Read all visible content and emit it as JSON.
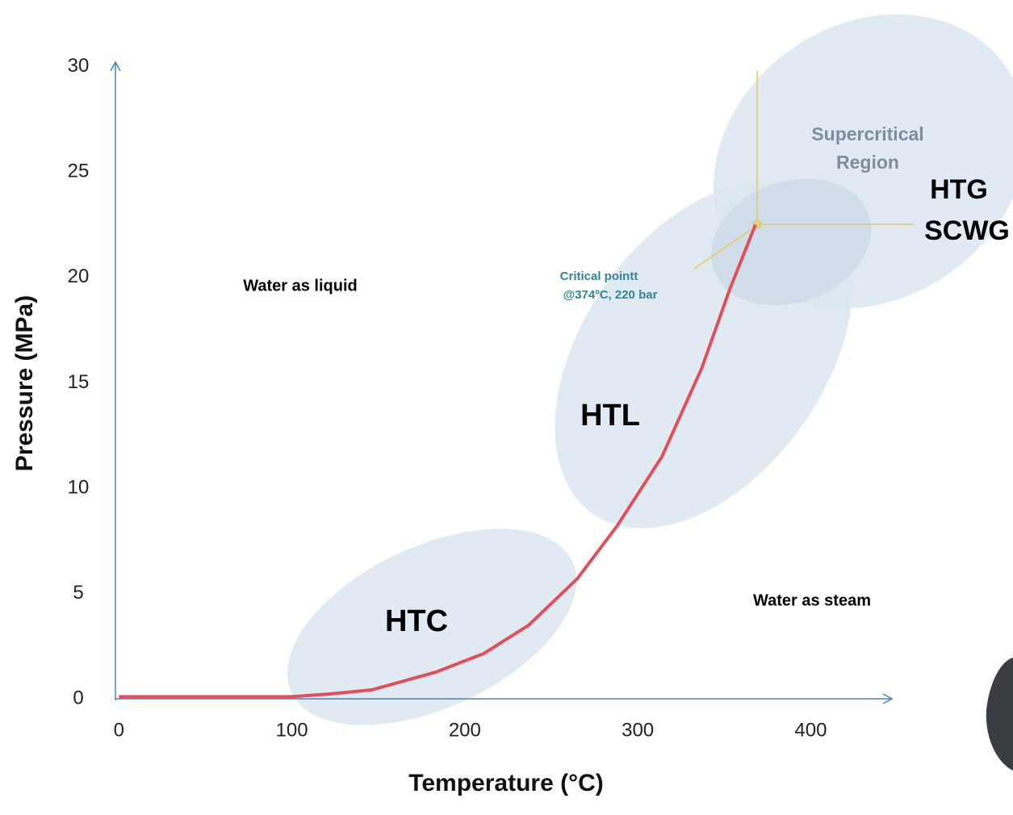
{
  "chart_data": {
    "type": "line",
    "xlabel": "Temperature (°C)",
    "ylabel": "Pressure (MPa)",
    "x": [
      0,
      100,
      122,
      146,
      183,
      211,
      237,
      265,
      288,
      314,
      337,
      353,
      368
    ],
    "values": [
      0.1,
      0.1,
      0.23,
      0.42,
      1.26,
      2.15,
      3.5,
      5.7,
      8.2,
      11.5,
      15.7,
      19.4,
      22.5
    ],
    "color": "#e0505c",
    "xlim": [
      -2,
      446
    ],
    "ylim": [
      0,
      30.3
    ],
    "xticks": [
      0,
      100,
      200,
      300,
      400
    ],
    "yticks": [
      0,
      5,
      10,
      15,
      20,
      25,
      30
    ],
    "grid": false,
    "annotations": [
      {
        "text": "Water as liquid"
      },
      {
        "text": "Critical pointt"
      },
      {
        "text": "@374ºC, 220 bar"
      },
      {
        "text": "Supercritical"
      },
      {
        "text": "Region"
      },
      {
        "text": "HTG"
      },
      {
        "text": "SCWG"
      },
      {
        "text": "HTL"
      },
      {
        "text": "HTC"
      },
      {
        "text": "Water as steam"
      }
    ]
  }
}
